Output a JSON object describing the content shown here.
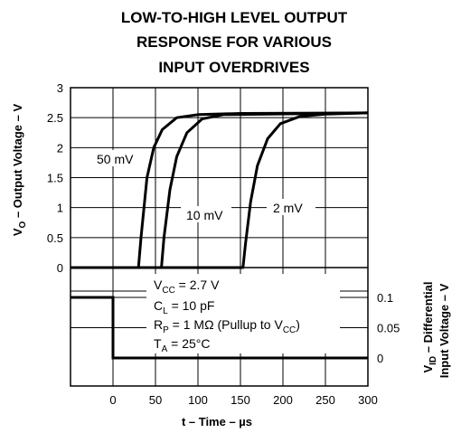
{
  "chart_data": {
    "type": "line",
    "title_lines": [
      "LOW-TO-HIGH LEVEL OUTPUT",
      "RESPONSE FOR VARIOUS",
      "INPUT OVERDRIVES"
    ],
    "xlabel": "t – Time – µs",
    "ylabel_output": {
      "main": "V",
      "sub": "O",
      "rest": " – Output Voltage – V"
    },
    "ylabel_input": {
      "line1_main": "V",
      "line1_sub": "ID",
      "line1_rest": " – Differential",
      "line2": "Input Voltage – V"
    },
    "xlim": [
      -50,
      300
    ],
    "x_ticks": [
      "0",
      "50",
      "100",
      "150",
      "200",
      "250",
      "300"
    ],
    "x_tick_values": [
      0,
      50,
      100,
      150,
      200,
      250,
      300
    ],
    "output_ylim": [
      0,
      3
    ],
    "output_y_ticks": [
      "0",
      "0.5",
      "1",
      "1.5",
      "2",
      "2.5",
      "3"
    ],
    "output_y_tick_values": [
      0,
      0.5,
      1,
      1.5,
      2,
      2.5,
      3
    ],
    "input_y_ticks": [
      "0.1",
      "0.05",
      "0"
    ],
    "input_y_tick_values": [
      0.1,
      0.05,
      0
    ],
    "grid": true,
    "series": [
      {
        "name": "50 mV",
        "points": [
          [
            -50,
            0
          ],
          [
            30,
            0
          ],
          [
            33,
            0.5
          ],
          [
            40,
            1.5
          ],
          [
            48,
            2.0
          ],
          [
            58,
            2.3
          ],
          [
            75,
            2.5
          ],
          [
            100,
            2.55
          ],
          [
            150,
            2.57
          ],
          [
            300,
            2.58
          ]
        ]
      },
      {
        "name": "10 mV",
        "points": [
          [
            -50,
            0
          ],
          [
            57,
            0
          ],
          [
            60,
            0.5
          ],
          [
            67,
            1.3
          ],
          [
            75,
            1.85
          ],
          [
            87,
            2.25
          ],
          [
            105,
            2.48
          ],
          [
            130,
            2.55
          ],
          [
            300,
            2.58
          ]
        ]
      },
      {
        "name": "2 mV",
        "points": [
          [
            -50,
            0
          ],
          [
            153,
            0
          ],
          [
            156,
            0.4
          ],
          [
            162,
            1.1
          ],
          [
            170,
            1.7
          ],
          [
            182,
            2.15
          ],
          [
            197,
            2.4
          ],
          [
            220,
            2.52
          ],
          [
            250,
            2.56
          ],
          [
            300,
            2.58
          ]
        ]
      }
    ],
    "input_series": {
      "points": [
        [
          -50,
          0.1
        ],
        [
          0,
          0.1
        ],
        [
          0,
          0
        ],
        [
          300,
          0
        ]
      ]
    },
    "conditions": [
      {
        "main": "V",
        "sub": "CC",
        "rest": "  = 2.7 V"
      },
      {
        "main": "C",
        "sub": "L",
        "rest": " = 10 pF"
      },
      {
        "main": "R",
        "sub": "P",
        "rest": " = 1 MΩ (Pullup to V",
        "sub2": "CC",
        "rest2": ")"
      },
      {
        "main": "T",
        "sub": "A",
        "rest": " = 25°C"
      }
    ]
  }
}
